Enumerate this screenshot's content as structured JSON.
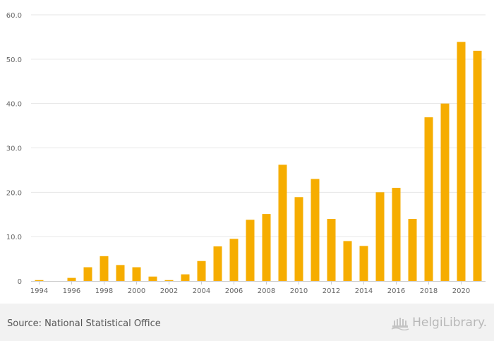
{
  "chart_data": {
    "type": "bar",
    "title": "",
    "xlabel": "",
    "ylabel": "",
    "ylim": [
      0,
      60
    ],
    "y_ticks": [
      "0",
      "10.0",
      "20.0",
      "30.0",
      "40.0",
      "50.0",
      "60.0"
    ],
    "y_tick_values": [
      0,
      10,
      20,
      30,
      40,
      50,
      60
    ],
    "x_tick_labels": [
      "1994",
      "1996",
      "1998",
      "2000",
      "2002",
      "2004",
      "2006",
      "2008",
      "2010",
      "2012",
      "2014",
      "2016",
      "2018",
      "2020"
    ],
    "categories": [
      "1994",
      "1995",
      "1996",
      "1997",
      "1998",
      "1999",
      "2000",
      "2001",
      "2002",
      "2003",
      "2004",
      "2005",
      "2006",
      "2007",
      "2008",
      "2009",
      "2010",
      "2011",
      "2012",
      "2013",
      "2014",
      "2015",
      "2016",
      "2017",
      "2018",
      "2019",
      "2020",
      "2021"
    ],
    "values": [
      0.2,
      0,
      0.7,
      3.1,
      5.6,
      3.6,
      3.1,
      1.0,
      0.2,
      1.5,
      4.5,
      7.8,
      9.5,
      13.8,
      15.1,
      26.2,
      18.9,
      23.0,
      14.0,
      9.0,
      7.9,
      20.0,
      21.0,
      14.0,
      36.9,
      40.0,
      53.9,
      51.9
    ],
    "grid": true,
    "bar_color": "#f6ad00",
    "grid_color": "#e6e6e6",
    "axis_label_color": "#666666"
  },
  "footer": {
    "source": "Source: National Statistical Office",
    "logo_text": "HelgiLibrary."
  }
}
